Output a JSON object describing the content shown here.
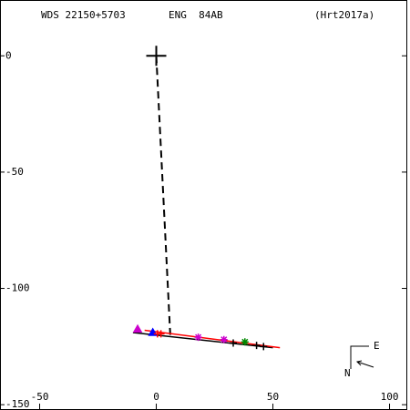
{
  "header": {
    "wds": "WDS 22150+5703",
    "discoverer": "ENG  84AB",
    "reference": "(Hrt2017a)"
  },
  "compass": {
    "east": "E",
    "north": "N"
  },
  "chart_data": {
    "type": "scatter",
    "xlim": [
      -67,
      108
    ],
    "ylim": [
      -151.5,
      24
    ],
    "xticks": [
      -50,
      0,
      50,
      100
    ],
    "yticks": [
      0,
      -50,
      -100,
      -150
    ],
    "primary": {
      "x": 0,
      "y": 0,
      "color": "#000000"
    },
    "lines": [
      {
        "x": [
          0,
          6
        ],
        "y": [
          0,
          -120
        ],
        "color": "#000000",
        "dash": true
      },
      {
        "x": [
          -10,
          50
        ],
        "y": [
          -119,
          -125.5
        ],
        "color": "#000000",
        "dash": false
      },
      {
        "x": [
          -5,
          53
        ],
        "y": [
          -118,
          -125.5
        ],
        "color": "#ff0000",
        "dash": false
      }
    ],
    "series": [
      {
        "color": "#cc00cc",
        "marker": "triangle",
        "x": [
          -8
        ],
        "y": [
          -117.5
        ]
      },
      {
        "color": "#0000ff",
        "marker": "triangle",
        "x": [
          -1.5
        ],
        "y": [
          -119
        ]
      },
      {
        "color": "#ff0000",
        "marker": "plus",
        "x": [
          0.5,
          2
        ],
        "y": [
          -119.5,
          -119.5
        ]
      },
      {
        "color": "#cc00cc",
        "marker": "star",
        "x": [
          18,
          29
        ],
        "y": [
          -121,
          -122
        ]
      },
      {
        "color": "#008800",
        "marker": "star",
        "x": [
          38
        ],
        "y": [
          -123
        ]
      },
      {
        "color": "#000000",
        "marker": "plus",
        "x": [
          33,
          43,
          46
        ],
        "y": [
          -123.5,
          -124.5,
          -125
        ]
      }
    ]
  }
}
